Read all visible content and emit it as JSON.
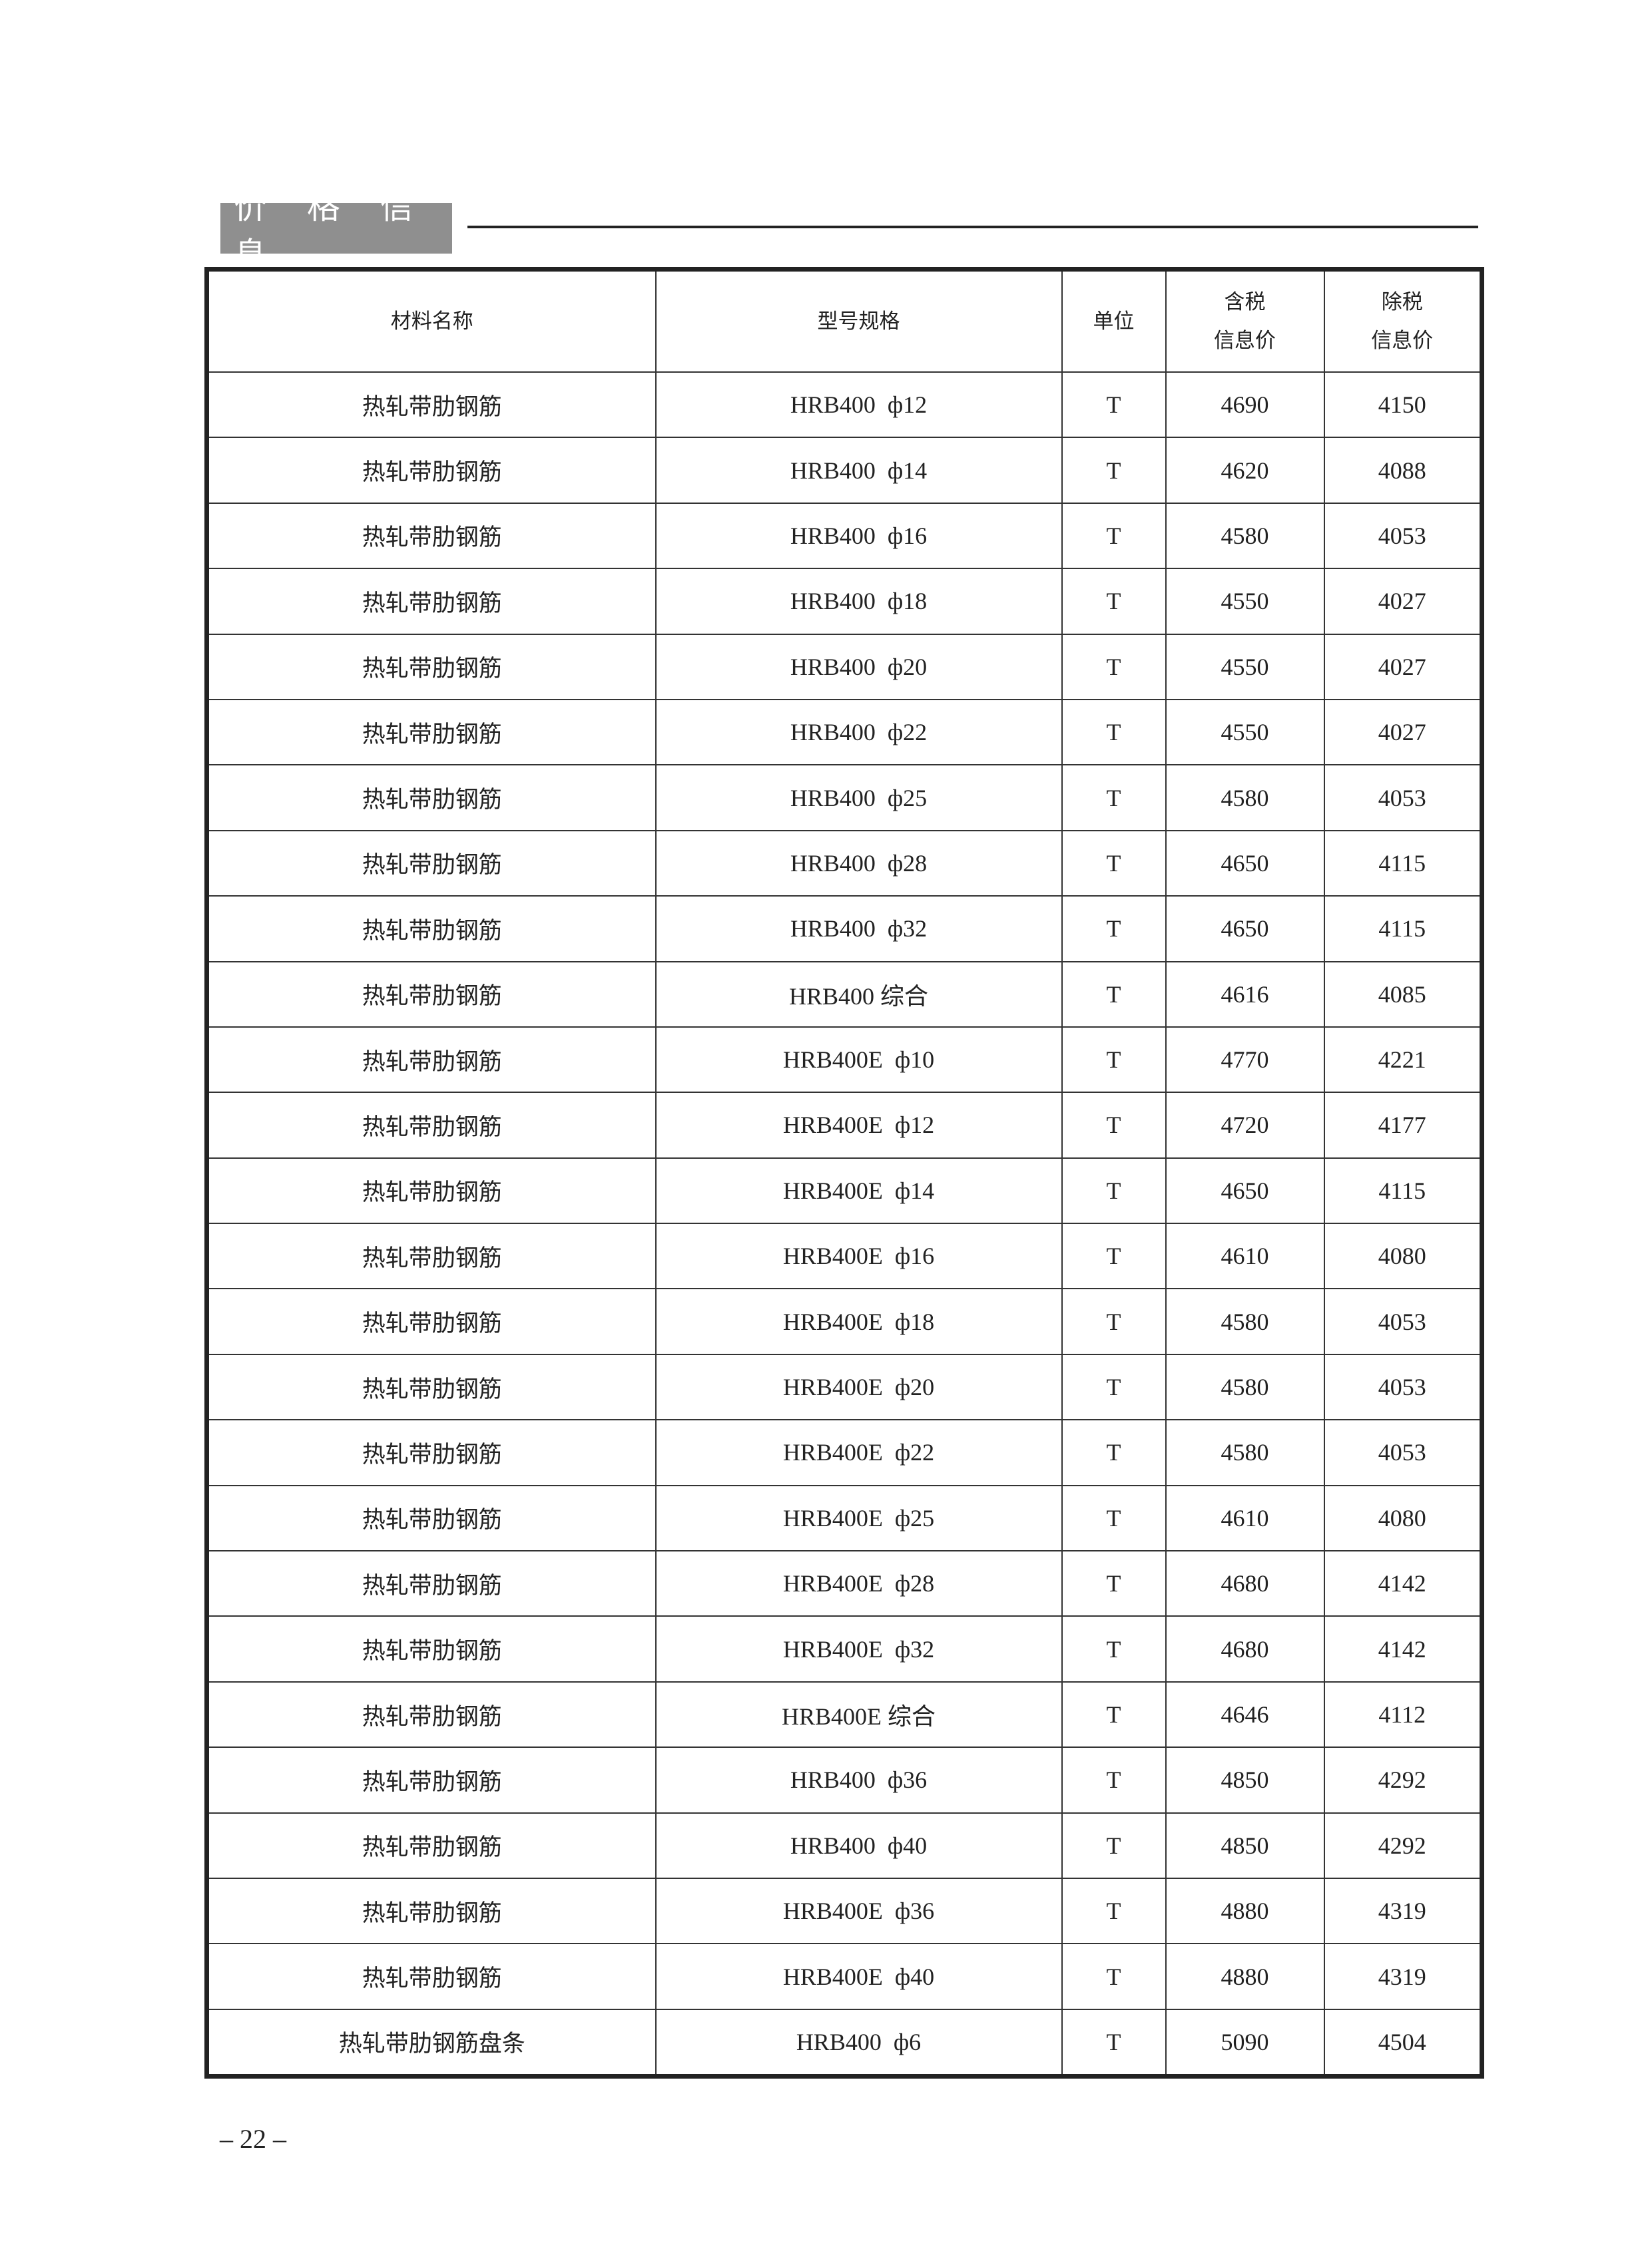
{
  "section": {
    "title": "价 格 信 息"
  },
  "table": {
    "headers": [
      "材料名称",
      "型号规格",
      "单位",
      "含税\n信息价",
      "除税\n信息价"
    ],
    "header_lines": {
      "tax_incl": [
        "含税",
        "信息价"
      ],
      "tax_excl": [
        "除税",
        "信息价"
      ]
    },
    "rows": [
      [
        "热轧带肋钢筋",
        "HRB400  ф12",
        "T",
        "4690",
        "4150"
      ],
      [
        "热轧带肋钢筋",
        "HRB400  ф14",
        "T",
        "4620",
        "4088"
      ],
      [
        "热轧带肋钢筋",
        "HRB400  ф16",
        "T",
        "4580",
        "4053"
      ],
      [
        "热轧带肋钢筋",
        "HRB400  ф18",
        "T",
        "4550",
        "4027"
      ],
      [
        "热轧带肋钢筋",
        "HRB400  ф20",
        "T",
        "4550",
        "4027"
      ],
      [
        "热轧带肋钢筋",
        "HRB400  ф22",
        "T",
        "4550",
        "4027"
      ],
      [
        "热轧带肋钢筋",
        "HRB400  ф25",
        "T",
        "4580",
        "4053"
      ],
      [
        "热轧带肋钢筋",
        "HRB400  ф28",
        "T",
        "4650",
        "4115"
      ],
      [
        "热轧带肋钢筋",
        "HRB400  ф32",
        "T",
        "4650",
        "4115"
      ],
      [
        "热轧带肋钢筋",
        "HRB400 综合",
        "T",
        "4616",
        "4085"
      ],
      [
        "热轧带肋钢筋",
        "HRB400E  ф10",
        "T",
        "4770",
        "4221"
      ],
      [
        "热轧带肋钢筋",
        "HRB400E  ф12",
        "T",
        "4720",
        "4177"
      ],
      [
        "热轧带肋钢筋",
        "HRB400E  ф14",
        "T",
        "4650",
        "4115"
      ],
      [
        "热轧带肋钢筋",
        "HRB400E  ф16",
        "T",
        "4610",
        "4080"
      ],
      [
        "热轧带肋钢筋",
        "HRB400E  ф18",
        "T",
        "4580",
        "4053"
      ],
      [
        "热轧带肋钢筋",
        "HRB400E  ф20",
        "T",
        "4580",
        "4053"
      ],
      [
        "热轧带肋钢筋",
        "HRB400E  ф22",
        "T",
        "4580",
        "4053"
      ],
      [
        "热轧带肋钢筋",
        "HRB400E  ф25",
        "T",
        "4610",
        "4080"
      ],
      [
        "热轧带肋钢筋",
        "HRB400E  ф28",
        "T",
        "4680",
        "4142"
      ],
      [
        "热轧带肋钢筋",
        "HRB400E  ф32",
        "T",
        "4680",
        "4142"
      ],
      [
        "热轧带肋钢筋",
        "HRB400E 综合",
        "T",
        "4646",
        "4112"
      ],
      [
        "热轧带肋钢筋",
        "HRB400  ф36",
        "T",
        "4850",
        "4292"
      ],
      [
        "热轧带肋钢筋",
        "HRB400  ф40",
        "T",
        "4850",
        "4292"
      ],
      [
        "热轧带肋钢筋",
        "HRB400E  ф36",
        "T",
        "4880",
        "4319"
      ],
      [
        "热轧带肋钢筋",
        "HRB400E  ф40",
        "T",
        "4880",
        "4319"
      ],
      [
        "热轧带肋钢筋盘条",
        "HRB400  ф6",
        "T",
        "5090",
        "4504"
      ]
    ]
  },
  "footer": {
    "page_number": "– 22 –"
  }
}
